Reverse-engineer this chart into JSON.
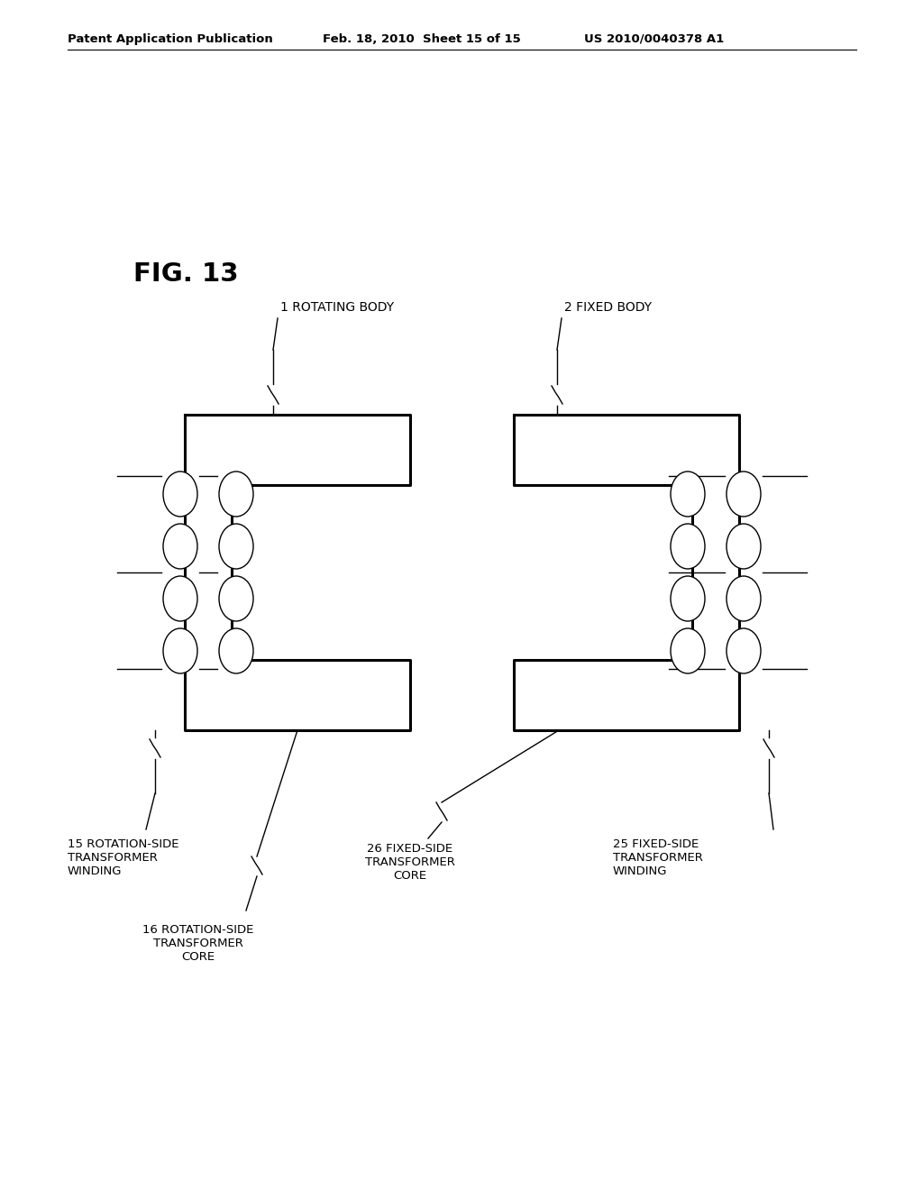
{
  "bg_color": "#ffffff",
  "header_left": "Patent Application Publication",
  "header_mid": "Feb. 18, 2010  Sheet 15 of 15",
  "header_right": "US 2010/0040378 A1",
  "fig_label": "FIG. 13",
  "label_1": "1 ROTATING BODY",
  "label_2": "2 FIXED BODY",
  "label_15": "15 ROTATION-SIDE\nTRANSFORMER\nWINDING",
  "label_16": "16 ROTATION-SIDE\nTRANSFORMER\nCORE",
  "label_25": "25 FIXED-SIDE\nTRANSFORMER\nWINDING",
  "label_26": "26 FIXED-SIDE\nTRANSFORMER\nCORE",
  "line_color": "#000000",
  "lw_thick": 2.2,
  "lw_thin": 1.0
}
